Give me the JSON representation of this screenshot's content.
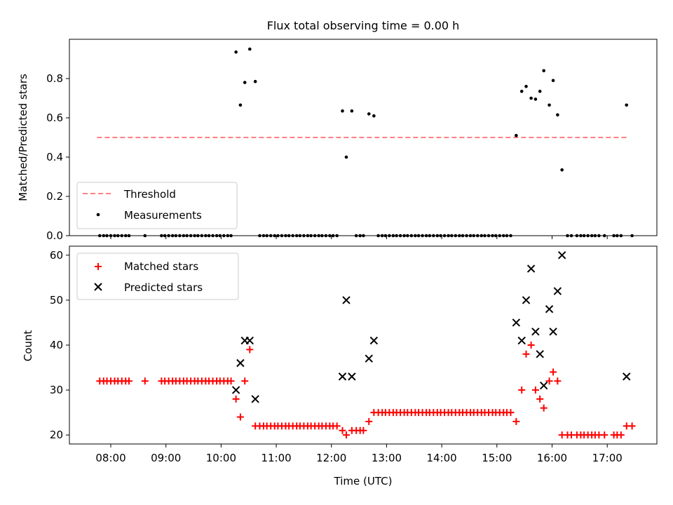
{
  "title": "Flux total observing time = 0.00 h",
  "colors": {
    "threshold": "#ff7f7f",
    "measurement": "#000000",
    "matched": "#ff0000",
    "predicted": "#000000"
  },
  "chart_data": [
    {
      "type": "scatter",
      "ylabel": "Matched/Predicted stars",
      "xlim": [
        7.25,
        17.9
      ],
      "ylim": [
        0,
        1.0
      ],
      "yticks": [
        "0.0",
        "0.2",
        "0.4",
        "0.6",
        "0.8"
      ],
      "ytick_values": [
        0,
        0.2,
        0.4,
        0.6,
        0.8
      ],
      "legend_position": "lower left",
      "threshold": {
        "name": "Threshold",
        "value": 0.5,
        "x_range": [
          7.75,
          17.35
        ]
      },
      "measurements": {
        "name": "Measurements",
        "points": [
          [
            7.8,
            0
          ],
          [
            7.87,
            0
          ],
          [
            7.93,
            0
          ],
          [
            8.0,
            0
          ],
          [
            8.07,
            0
          ],
          [
            8.13,
            0
          ],
          [
            8.2,
            0
          ],
          [
            8.27,
            0
          ],
          [
            8.33,
            0
          ],
          [
            8.62,
            0
          ],
          [
            8.92,
            0
          ],
          [
            8.98,
            0
          ],
          [
            9.05,
            0
          ],
          [
            9.12,
            0
          ],
          [
            9.18,
            0
          ],
          [
            9.25,
            0
          ],
          [
            9.32,
            0
          ],
          [
            9.38,
            0
          ],
          [
            9.45,
            0
          ],
          [
            9.52,
            0
          ],
          [
            9.58,
            0
          ],
          [
            9.65,
            0
          ],
          [
            9.72,
            0
          ],
          [
            9.78,
            0
          ],
          [
            9.85,
            0
          ],
          [
            9.92,
            0
          ],
          [
            9.98,
            0
          ],
          [
            10.05,
            0
          ],
          [
            10.12,
            0
          ],
          [
            10.18,
            0
          ],
          [
            10.27,
            0.935
          ],
          [
            10.35,
            0.665
          ],
          [
            10.43,
            0.78
          ],
          [
            10.52,
            0.95
          ],
          [
            10.62,
            0.785
          ],
          [
            10.7,
            0
          ],
          [
            10.77,
            0
          ],
          [
            10.83,
            0
          ],
          [
            10.9,
            0
          ],
          [
            10.97,
            0
          ],
          [
            11.03,
            0
          ],
          [
            11.1,
            0
          ],
          [
            11.17,
            0
          ],
          [
            11.23,
            0
          ],
          [
            11.3,
            0
          ],
          [
            11.37,
            0
          ],
          [
            11.43,
            0
          ],
          [
            11.5,
            0
          ],
          [
            11.57,
            0
          ],
          [
            11.63,
            0
          ],
          [
            11.7,
            0
          ],
          [
            11.77,
            0
          ],
          [
            11.83,
            0
          ],
          [
            11.9,
            0
          ],
          [
            11.97,
            0
          ],
          [
            12.03,
            0
          ],
          [
            12.1,
            0
          ],
          [
            12.2,
            0.635
          ],
          [
            12.27,
            0.4
          ],
          [
            12.37,
            0.635
          ],
          [
            12.45,
            0
          ],
          [
            12.52,
            0
          ],
          [
            12.58,
            0
          ],
          [
            12.68,
            0.62
          ],
          [
            12.77,
            0.61
          ],
          [
            12.85,
            0
          ],
          [
            12.92,
            0
          ],
          [
            12.98,
            0
          ],
          [
            13.05,
            0
          ],
          [
            13.12,
            0
          ],
          [
            13.18,
            0
          ],
          [
            13.25,
            0
          ],
          [
            13.32,
            0
          ],
          [
            13.38,
            0
          ],
          [
            13.45,
            0
          ],
          [
            13.52,
            0
          ],
          [
            13.58,
            0
          ],
          [
            13.65,
            0
          ],
          [
            13.72,
            0
          ],
          [
            13.78,
            0
          ],
          [
            13.85,
            0
          ],
          [
            13.92,
            0
          ],
          [
            13.98,
            0
          ],
          [
            14.05,
            0
          ],
          [
            14.12,
            0
          ],
          [
            14.18,
            0
          ],
          [
            14.25,
            0
          ],
          [
            14.32,
            0
          ],
          [
            14.38,
            0
          ],
          [
            14.45,
            0
          ],
          [
            14.52,
            0
          ],
          [
            14.58,
            0
          ],
          [
            14.65,
            0
          ],
          [
            14.72,
            0
          ],
          [
            14.78,
            0
          ],
          [
            14.85,
            0
          ],
          [
            14.92,
            0
          ],
          [
            14.98,
            0
          ],
          [
            15.05,
            0
          ],
          [
            15.12,
            0
          ],
          [
            15.18,
            0
          ],
          [
            15.25,
            0
          ],
          [
            15.35,
            0.51
          ],
          [
            15.45,
            0.735
          ],
          [
            15.53,
            0.76
          ],
          [
            15.62,
            0.7
          ],
          [
            15.7,
            0.695
          ],
          [
            15.78,
            0.735
          ],
          [
            15.85,
            0.84
          ],
          [
            15.95,
            0.665
          ],
          [
            16.02,
            0.79
          ],
          [
            16.1,
            0.615
          ],
          [
            16.18,
            0.335
          ],
          [
            16.28,
            0
          ],
          [
            16.35,
            0
          ],
          [
            16.45,
            0
          ],
          [
            16.52,
            0
          ],
          [
            16.58,
            0
          ],
          [
            16.65,
            0
          ],
          [
            16.72,
            0
          ],
          [
            16.78,
            0
          ],
          [
            16.85,
            0
          ],
          [
            16.95,
            0
          ],
          [
            17.12,
            0
          ],
          [
            17.18,
            0
          ],
          [
            17.25,
            0
          ],
          [
            17.35,
            0.665
          ],
          [
            17.45,
            0
          ]
        ]
      }
    },
    {
      "type": "scatter",
      "xlabel": "Time (UTC)",
      "ylabel": "Count",
      "xlim": [
        7.25,
        17.9
      ],
      "ylim": [
        18,
        62
      ],
      "xticks": [
        "08:00",
        "09:00",
        "10:00",
        "11:00",
        "12:00",
        "13:00",
        "14:00",
        "15:00",
        "16:00",
        "17:00"
      ],
      "xtick_values": [
        8,
        9,
        10,
        11,
        12,
        13,
        14,
        15,
        16,
        17
      ],
      "yticks": [
        "20",
        "30",
        "40",
        "50",
        "60"
      ],
      "ytick_values": [
        20,
        30,
        40,
        50,
        60
      ],
      "legend_position": "upper left",
      "series": [
        {
          "name": "Matched stars",
          "marker": "+",
          "points": [
            [
              7.8,
              32
            ],
            [
              7.87,
              32
            ],
            [
              7.93,
              32
            ],
            [
              8.0,
              32
            ],
            [
              8.07,
              32
            ],
            [
              8.13,
              32
            ],
            [
              8.2,
              32
            ],
            [
              8.27,
              32
            ],
            [
              8.33,
              32
            ],
            [
              8.62,
              32
            ],
            [
              8.92,
              32
            ],
            [
              8.98,
              32
            ],
            [
              9.05,
              32
            ],
            [
              9.12,
              32
            ],
            [
              9.18,
              32
            ],
            [
              9.25,
              32
            ],
            [
              9.32,
              32
            ],
            [
              9.38,
              32
            ],
            [
              9.45,
              32
            ],
            [
              9.52,
              32
            ],
            [
              9.58,
              32
            ],
            [
              9.65,
              32
            ],
            [
              9.72,
              32
            ],
            [
              9.78,
              32
            ],
            [
              9.85,
              32
            ],
            [
              9.92,
              32
            ],
            [
              9.98,
              32
            ],
            [
              10.05,
              32
            ],
            [
              10.12,
              32
            ],
            [
              10.18,
              32
            ],
            [
              10.27,
              28
            ],
            [
              10.35,
              24
            ],
            [
              10.43,
              32
            ],
            [
              10.52,
              39
            ],
            [
              10.62,
              22
            ],
            [
              10.7,
              22
            ],
            [
              10.77,
              22
            ],
            [
              10.83,
              22
            ],
            [
              10.9,
              22
            ],
            [
              10.97,
              22
            ],
            [
              11.03,
              22
            ],
            [
              11.1,
              22
            ],
            [
              11.17,
              22
            ],
            [
              11.23,
              22
            ],
            [
              11.3,
              22
            ],
            [
              11.37,
              22
            ],
            [
              11.43,
              22
            ],
            [
              11.5,
              22
            ],
            [
              11.57,
              22
            ],
            [
              11.63,
              22
            ],
            [
              11.7,
              22
            ],
            [
              11.77,
              22
            ],
            [
              11.83,
              22
            ],
            [
              11.9,
              22
            ],
            [
              11.97,
              22
            ],
            [
              12.03,
              22
            ],
            [
              12.1,
              22
            ],
            [
              12.2,
              21
            ],
            [
              12.27,
              20
            ],
            [
              12.37,
              21
            ],
            [
              12.45,
              21
            ],
            [
              12.52,
              21
            ],
            [
              12.58,
              21
            ],
            [
              12.68,
              23
            ],
            [
              12.77,
              25
            ],
            [
              12.85,
              25
            ],
            [
              12.92,
              25
            ],
            [
              12.98,
              25
            ],
            [
              13.05,
              25
            ],
            [
              13.12,
              25
            ],
            [
              13.18,
              25
            ],
            [
              13.25,
              25
            ],
            [
              13.32,
              25
            ],
            [
              13.38,
              25
            ],
            [
              13.45,
              25
            ],
            [
              13.52,
              25
            ],
            [
              13.58,
              25
            ],
            [
              13.65,
              25
            ],
            [
              13.72,
              25
            ],
            [
              13.78,
              25
            ],
            [
              13.85,
              25
            ],
            [
              13.92,
              25
            ],
            [
              13.98,
              25
            ],
            [
              14.05,
              25
            ],
            [
              14.12,
              25
            ],
            [
              14.18,
              25
            ],
            [
              14.25,
              25
            ],
            [
              14.32,
              25
            ],
            [
              14.38,
              25
            ],
            [
              14.45,
              25
            ],
            [
              14.52,
              25
            ],
            [
              14.58,
              25
            ],
            [
              14.65,
              25
            ],
            [
              14.72,
              25
            ],
            [
              14.78,
              25
            ],
            [
              14.85,
              25
            ],
            [
              14.92,
              25
            ],
            [
              14.98,
              25
            ],
            [
              15.05,
              25
            ],
            [
              15.12,
              25
            ],
            [
              15.18,
              25
            ],
            [
              15.25,
              25
            ],
            [
              15.35,
              23
            ],
            [
              15.45,
              30
            ],
            [
              15.53,
              38
            ],
            [
              15.62,
              40
            ],
            [
              15.7,
              30
            ],
            [
              15.78,
              28
            ],
            [
              15.85,
              26
            ],
            [
              15.95,
              32
            ],
            [
              16.02,
              34
            ],
            [
              16.1,
              32
            ],
            [
              16.18,
              20
            ],
            [
              16.28,
              20
            ],
            [
              16.35,
              20
            ],
            [
              16.45,
              20
            ],
            [
              16.52,
              20
            ],
            [
              16.58,
              20
            ],
            [
              16.65,
              20
            ],
            [
              16.72,
              20
            ],
            [
              16.78,
              20
            ],
            [
              16.85,
              20
            ],
            [
              16.95,
              20
            ],
            [
              17.12,
              20
            ],
            [
              17.18,
              20
            ],
            [
              17.25,
              20
            ],
            [
              17.35,
              22
            ],
            [
              17.45,
              22
            ]
          ]
        },
        {
          "name": "Predicted stars",
          "marker": "x",
          "points": [
            [
              10.27,
              30
            ],
            [
              10.35,
              36
            ],
            [
              10.43,
              41
            ],
            [
              10.52,
              41
            ],
            [
              10.62,
              28
            ],
            [
              12.2,
              33
            ],
            [
              12.27,
              50
            ],
            [
              12.37,
              33
            ],
            [
              12.68,
              37
            ],
            [
              12.77,
              41
            ],
            [
              15.35,
              45
            ],
            [
              15.45,
              41
            ],
            [
              15.53,
              50
            ],
            [
              15.62,
              57
            ],
            [
              15.7,
              43
            ],
            [
              15.78,
              38
            ],
            [
              15.85,
              31
            ],
            [
              15.95,
              48
            ],
            [
              16.02,
              43
            ],
            [
              16.1,
              52
            ],
            [
              16.18,
              60
            ],
            [
              17.35,
              33
            ]
          ]
        }
      ]
    }
  ]
}
